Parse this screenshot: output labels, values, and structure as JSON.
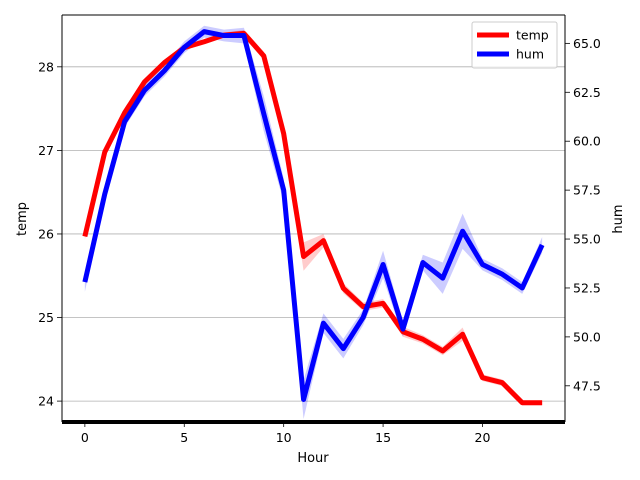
{
  "chart_data": {
    "type": "line",
    "x": [
      0,
      1,
      2,
      3,
      4,
      5,
      6,
      7,
      8,
      9,
      10,
      11,
      12,
      13,
      14,
      15,
      16,
      17,
      18,
      19,
      20,
      21,
      22,
      23
    ],
    "xlabel": "Hour",
    "xlim": [
      -1.15,
      24.15
    ],
    "xticks": [
      0,
      5,
      10,
      15,
      20
    ],
    "legend": "top-right",
    "grid": "horizontal lines at left-axis ticks",
    "series": [
      {
        "name": "temp",
        "axis": "left",
        "color": "#ff0000",
        "values": [
          25.97,
          26.98,
          27.45,
          27.82,
          28.05,
          28.23,
          28.3,
          28.38,
          28.4,
          28.13,
          27.2,
          25.73,
          25.92,
          25.35,
          25.13,
          25.17,
          24.83,
          24.74,
          24.6,
          24.8,
          24.28,
          24.22,
          23.98,
          23.98
        ],
        "band_halfwidth": [
          0.04,
          0.03,
          0.03,
          0.03,
          0.03,
          0.03,
          0.03,
          0.03,
          0.04,
          0.05,
          0.06,
          0.17,
          0.08,
          0.06,
          0.05,
          0.05,
          0.06,
          0.05,
          0.05,
          0.08,
          0.04,
          0.04,
          0.03,
          0.03
        ]
      },
      {
        "name": "hum",
        "axis": "right",
        "color": "#0000ff",
        "values": [
          52.8,
          57.3,
          61.0,
          62.6,
          63.6,
          64.8,
          65.6,
          65.4,
          65.4,
          61.4,
          57.5,
          46.8,
          50.7,
          49.4,
          51.0,
          53.7,
          50.4,
          53.8,
          53.0,
          55.4,
          53.7,
          53.2,
          52.5,
          54.7
        ],
        "band_halfwidth": [
          0.5,
          0.3,
          0.3,
          0.3,
          0.3,
          0.3,
          0.3,
          0.3,
          0.4,
          0.9,
          0.6,
          1.0,
          0.5,
          0.5,
          0.4,
          0.7,
          0.4,
          0.4,
          0.8,
          0.9,
          0.3,
          0.3,
          0.3,
          0.4
        ]
      }
    ],
    "y_left": {
      "label": "temp",
      "lim": [
        23.75,
        28.62
      ],
      "ticks": [
        24,
        25,
        26,
        27,
        28
      ]
    },
    "y_right": {
      "label": "hum",
      "lim": [
        45.65,
        66.45
      ],
      "ticks": [
        47.5,
        50.0,
        52.5,
        55.0,
        57.5,
        60.0,
        62.5,
        65.0
      ]
    }
  }
}
